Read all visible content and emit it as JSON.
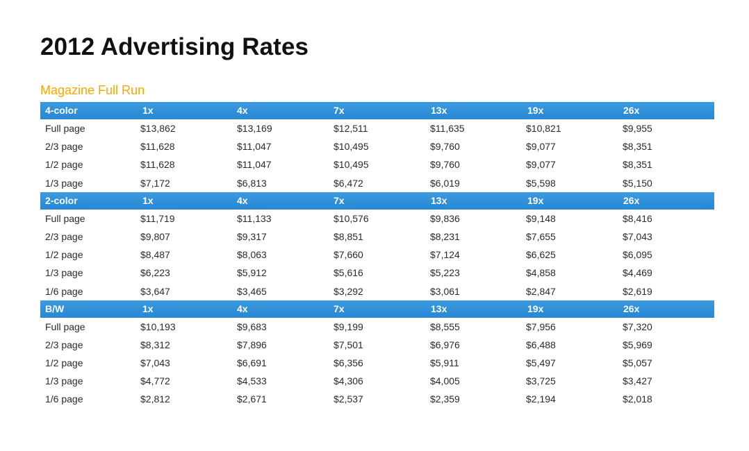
{
  "title": "2012 Advertising Rates",
  "section_title": "Magazine Full Run",
  "groups": [
    {
      "header": [
        "4-color",
        "1x",
        "4x",
        "7x",
        "13x",
        "19x",
        "26x"
      ],
      "rows": [
        [
          "Full page",
          "$13,862",
          "$13,169",
          "$12,511",
          "$11,635",
          "$10,821",
          "$9,955"
        ],
        [
          "2/3 page",
          "$11,628",
          "$11,047",
          "$10,495",
          "$9,760",
          "$9,077",
          "$8,351"
        ],
        [
          "1/2 page",
          "$11,628",
          "$11,047",
          "$10,495",
          "$9,760",
          "$9,077",
          "$8,351"
        ],
        [
          "1/3 page",
          "$7,172",
          "$6,813",
          "$6,472",
          "$6,019",
          "$5,598",
          "$5,150"
        ]
      ]
    },
    {
      "header": [
        "2-color",
        "1x",
        "4x",
        "7x",
        "13x",
        "19x",
        "26x"
      ],
      "rows": [
        [
          "Full page",
          "$11,719",
          "$11,133",
          "$10,576",
          "$9,836",
          "$9,148",
          "$8,416"
        ],
        [
          "2/3 page",
          "$9,807",
          "$9,317",
          "$8,851",
          "$8,231",
          "$7,655",
          "$7,043"
        ],
        [
          "1/2 page",
          "$8,487",
          "$8,063",
          "$7,660",
          "$7,124",
          "$6,625",
          "$6,095"
        ],
        [
          "1/3 page",
          "$6,223",
          "$5,912",
          "$5,616",
          "$5,223",
          "$4,858",
          "$4,469"
        ],
        [
          "1/6 page",
          "$3,647",
          "$3,465",
          "$3,292",
          "$3,061",
          "$2,847",
          "$2,619"
        ]
      ]
    },
    {
      "header": [
        "B/W",
        "1x",
        "4x",
        "7x",
        "13x",
        "19x",
        "26x"
      ],
      "rows": [
        [
          "Full page",
          "$10,193",
          "$9,683",
          "$9,199",
          "$8,555",
          "$7,956",
          "$7,320"
        ],
        [
          "2/3 page",
          "$8,312",
          "$7,896",
          "$7,501",
          "$6,976",
          "$6,488",
          "$5,969"
        ],
        [
          "1/2 page",
          "$7,043",
          "$6,691",
          "$6,356",
          "$5,911",
          "$5,497",
          "$5,057"
        ],
        [
          "1/3 page",
          "$4,772",
          "$4,533",
          "$4,306",
          "$4,005",
          "$3,725",
          "$3,427"
        ],
        [
          "1/6 page",
          "$2,812",
          "$2,671",
          "$2,537",
          "$2,359",
          "$2,194",
          "$2,018"
        ]
      ]
    }
  ]
}
